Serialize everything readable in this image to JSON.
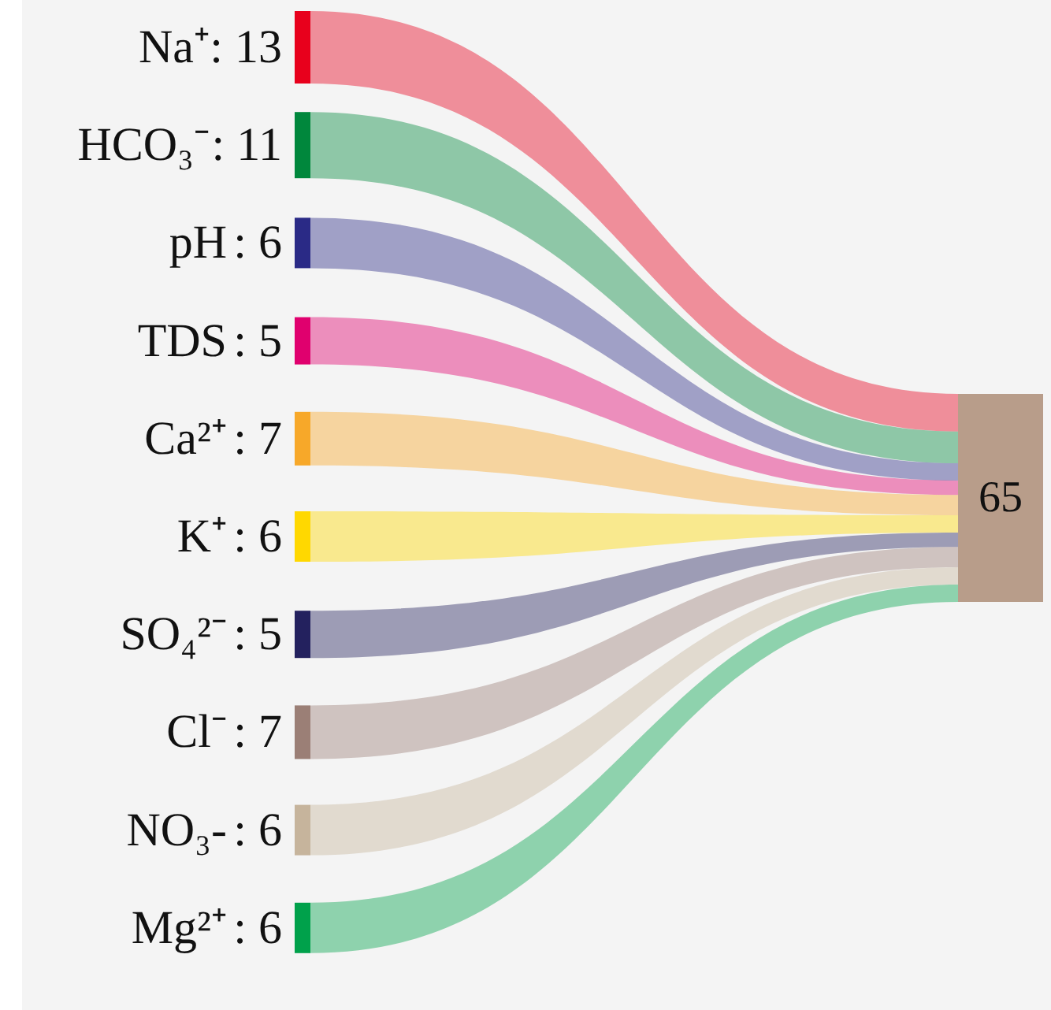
{
  "chart_data": {
    "type": "other",
    "categories": [
      "Na⁺",
      "HCO₃⁻",
      "pH",
      "TDS",
      "Ca²⁺",
      "K⁺",
      "SO₄²⁻",
      "Cl⁻",
      "NO₃-",
      "Mg²⁺"
    ],
    "value_labels": [
      ": 13",
      ": 11",
      ": 6",
      ": 5",
      ": 7",
      ": 6",
      ": 5",
      ": 7",
      ": 6",
      ": 6"
    ],
    "values": [
      13,
      11,
      6,
      5,
      7,
      6,
      5,
      7,
      6,
      6
    ],
    "colors": [
      "#e8001c",
      "#00873c",
      "#2a2a86",
      "#e0006e",
      "#f7a829",
      "#ffd800",
      "#23215e",
      "#9b7f76",
      "#c6b49c",
      "#00a14b"
    ],
    "annotations": [
      "65"
    ]
  }
}
